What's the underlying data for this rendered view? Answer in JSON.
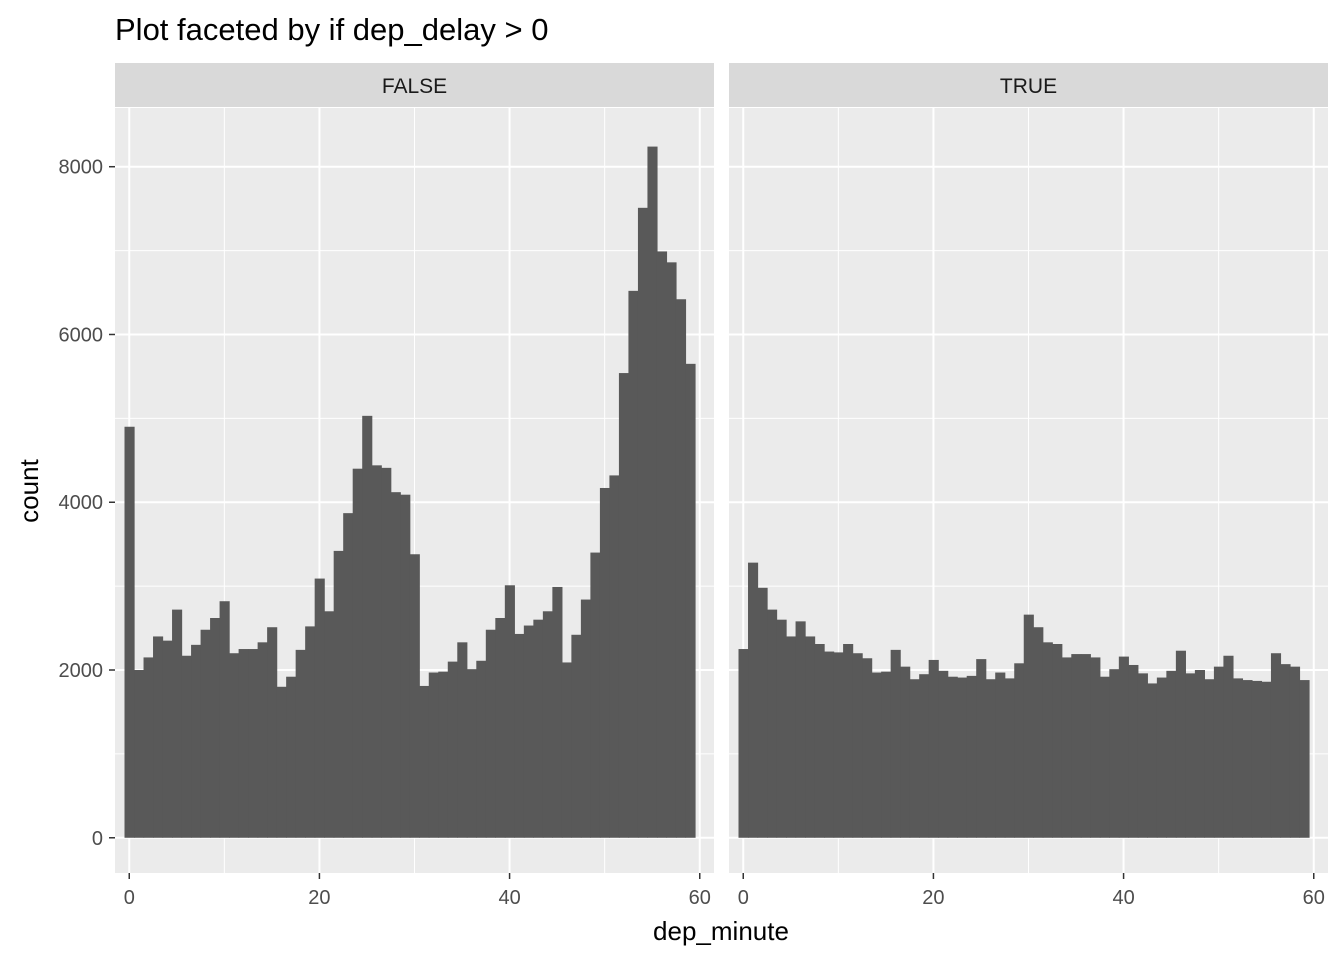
{
  "chart_data": {
    "type": "bar",
    "title": "Plot faceted by if dep_delay > 0",
    "xlabel": "dep_minute",
    "ylabel": "count",
    "xlim": [
      -1.5,
      61.5
    ],
    "ylim": [
      -420,
      8700
    ],
    "x_ticks": [
      0,
      20,
      40,
      60
    ],
    "y_ticks": [
      0,
      2000,
      4000,
      6000,
      8000
    ],
    "grid": true,
    "legend": "none",
    "bar_color": "#595959",
    "panel_bg": "#ebebeb",
    "strip_bg": "#d9d9d9",
    "grid_color": "#ffffff",
    "facets": [
      {
        "label": "FALSE",
        "x": [
          0,
          1,
          2,
          3,
          4,
          5,
          6,
          7,
          8,
          9,
          10,
          11,
          12,
          13,
          14,
          15,
          16,
          17,
          18,
          19,
          20,
          21,
          22,
          23,
          24,
          25,
          26,
          27,
          28,
          29,
          30,
          31,
          32,
          33,
          34,
          35,
          36,
          37,
          38,
          39,
          40,
          41,
          42,
          43,
          44,
          45,
          46,
          47,
          48,
          49,
          50,
          51,
          52,
          53,
          54,
          55,
          56,
          57,
          58,
          59
        ],
        "values": [
          4900,
          2000,
          2150,
          2400,
          2350,
          2720,
          2170,
          2300,
          2480,
          2620,
          2820,
          2200,
          2250,
          2250,
          2330,
          2510,
          1800,
          1920,
          2240,
          2520,
          3090,
          2700,
          3420,
          3870,
          4400,
          5030,
          4440,
          4410,
          4120,
          4090,
          3380,
          1810,
          1970,
          1980,
          2100,
          2330,
          2010,
          2110,
          2480,
          2620,
          3010,
          2430,
          2530,
          2600,
          2700,
          2990,
          2090,
          2420,
          2840,
          3400,
          4170,
          4320,
          5540,
          6520,
          7510,
          8240,
          6990,
          6860,
          6420,
          5650
        ]
      },
      {
        "label": "TRUE",
        "x": [
          0,
          1,
          2,
          3,
          4,
          5,
          6,
          7,
          8,
          9,
          10,
          11,
          12,
          13,
          14,
          15,
          16,
          17,
          18,
          19,
          20,
          21,
          22,
          23,
          24,
          25,
          26,
          27,
          28,
          29,
          30,
          31,
          32,
          33,
          34,
          35,
          36,
          37,
          38,
          39,
          40,
          41,
          42,
          43,
          44,
          45,
          46,
          47,
          48,
          49,
          50,
          51,
          52,
          53,
          54,
          55,
          56,
          57,
          58,
          59
        ],
        "values": [
          2250,
          3280,
          2980,
          2720,
          2600,
          2400,
          2580,
          2400,
          2310,
          2220,
          2210,
          2310,
          2200,
          2140,
          1970,
          1980,
          2240,
          2040,
          1890,
          1950,
          2120,
          1990,
          1920,
          1910,
          1930,
          2130,
          1890,
          1970,
          1900,
          2080,
          2660,
          2510,
          2330,
          2310,
          2150,
          2190,
          2190,
          2150,
          1920,
          2010,
          2160,
          2060,
          1960,
          1840,
          1910,
          1990,
          2230,
          1960,
          2000,
          1890,
          2040,
          2170,
          1900,
          1880,
          1870,
          1860,
          2200,
          2070,
          2040,
          1880
        ]
      }
    ]
  }
}
